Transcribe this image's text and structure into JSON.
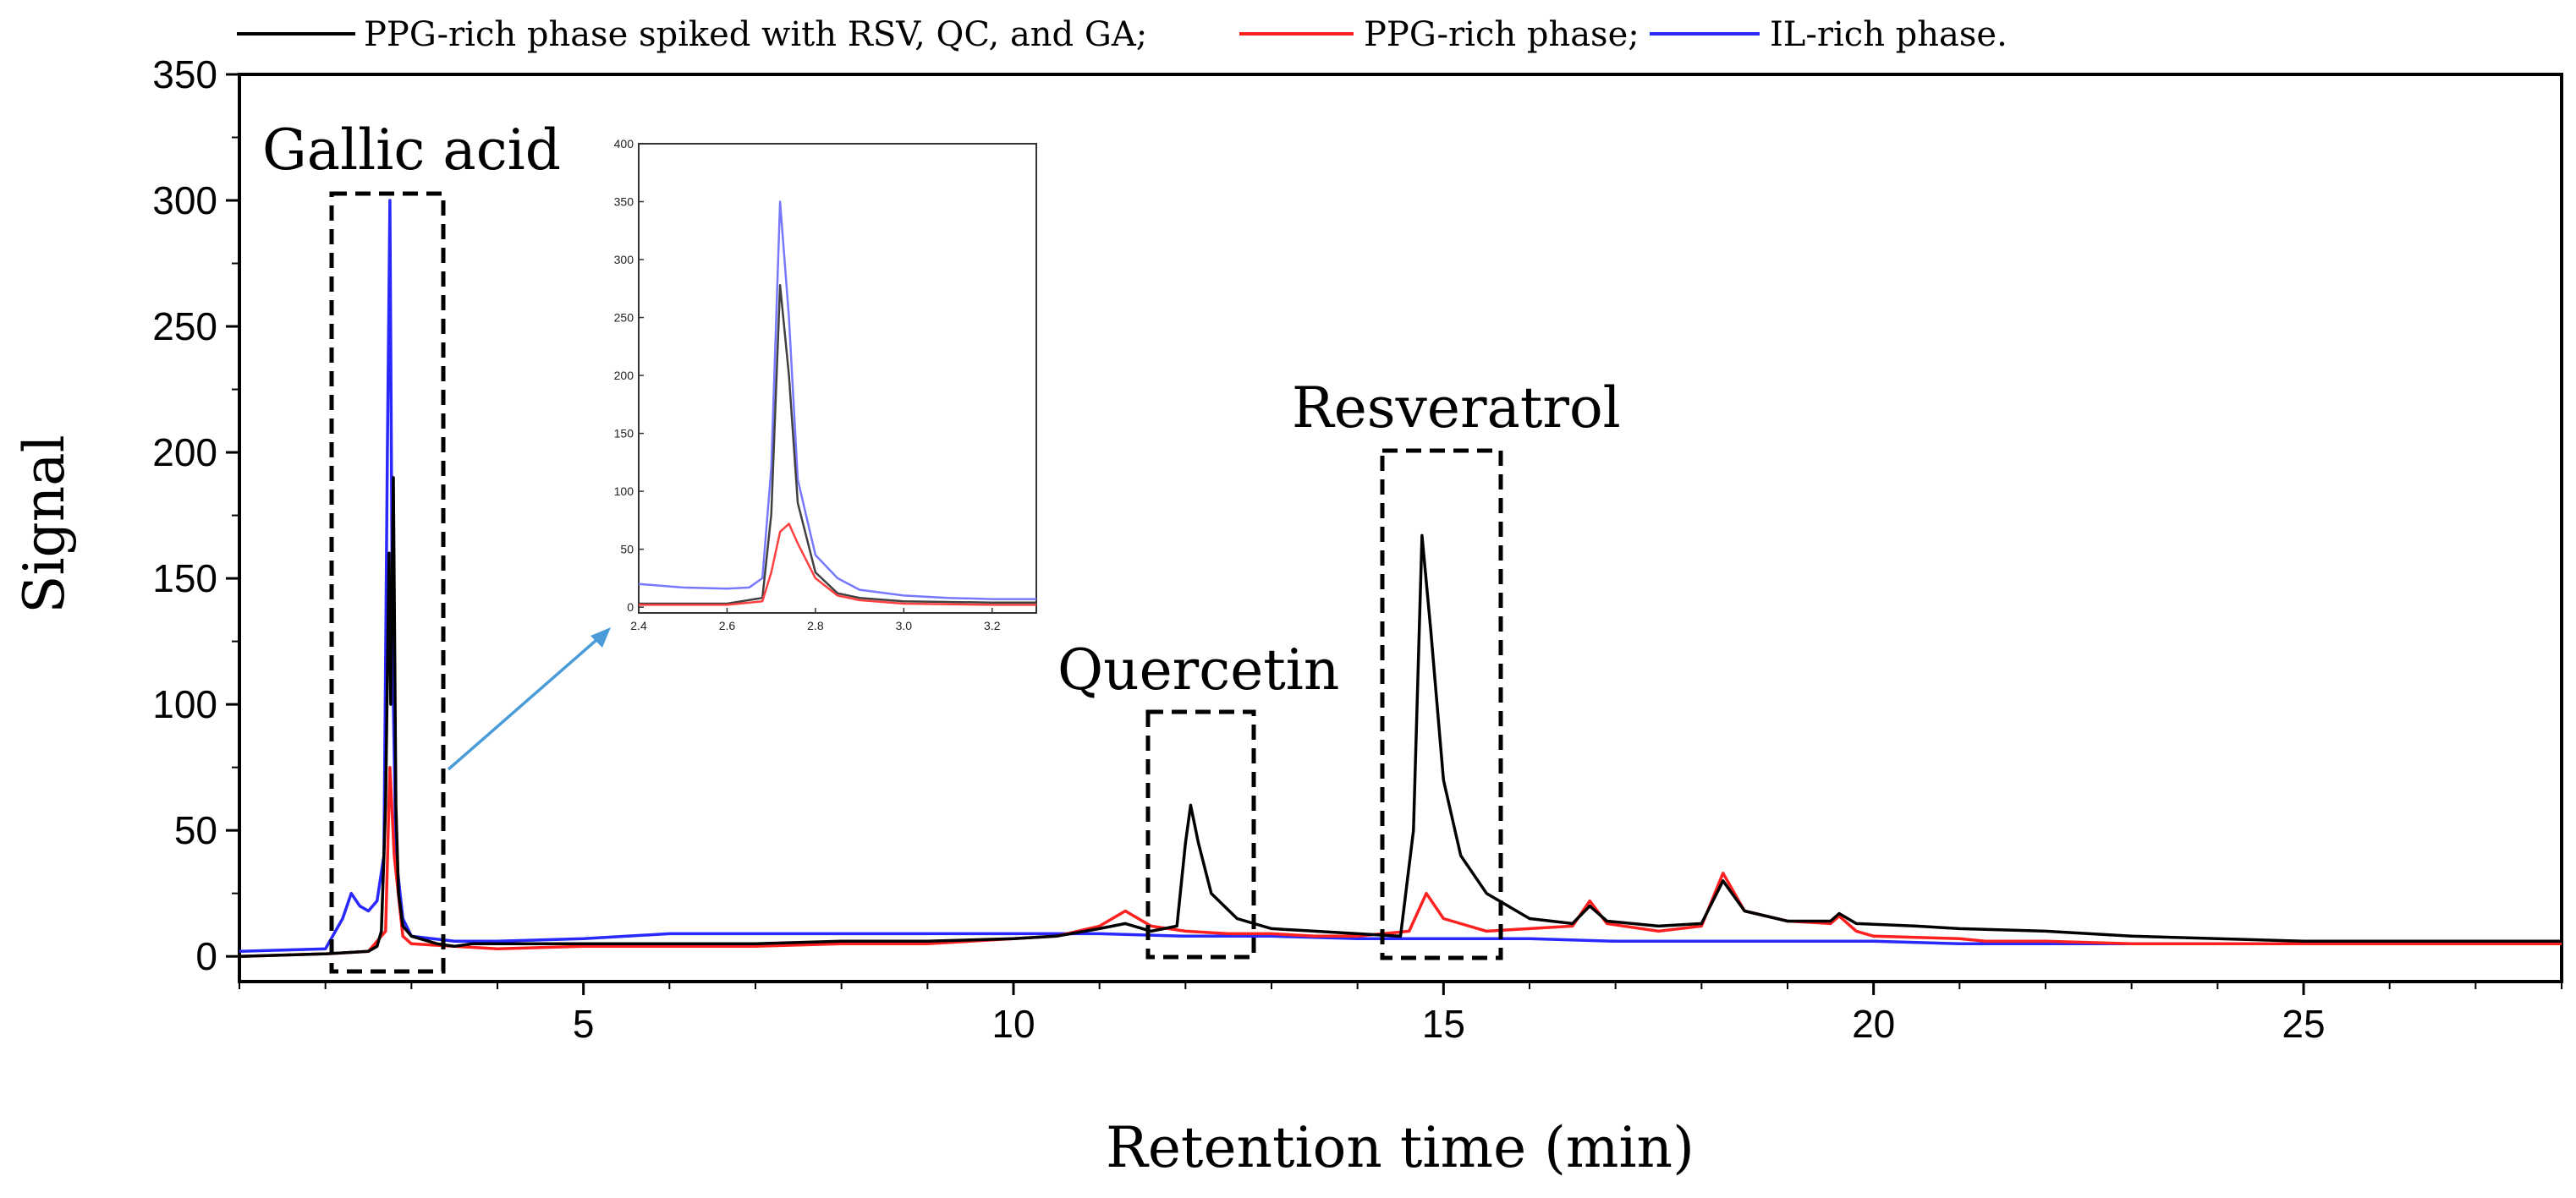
{
  "chart_data": {
    "type": "line",
    "title": "",
    "xlabel": "Retention time (min)",
    "ylabel": "Signal",
    "xlim": [
      1,
      28
    ],
    "ylim": [
      -10,
      350
    ],
    "x_ticks": [
      5,
      10,
      15,
      20,
      25
    ],
    "y_ticks": [
      0,
      50,
      100,
      150,
      200,
      250,
      300,
      350
    ],
    "legend_position": "top",
    "series": [
      {
        "name": "PPG-rich phase spiked with RSV, QC, and GA;",
        "color": "#000000",
        "points": [
          [
            1.0,
            0
          ],
          [
            2.0,
            1
          ],
          [
            2.5,
            2
          ],
          [
            2.6,
            4
          ],
          [
            2.65,
            10
          ],
          [
            2.7,
            60
          ],
          [
            2.74,
            160
          ],
          [
            2.76,
            100
          ],
          [
            2.79,
            190
          ],
          [
            2.82,
            60
          ],
          [
            2.85,
            25
          ],
          [
            2.9,
            12
          ],
          [
            3.0,
            8
          ],
          [
            3.3,
            5
          ],
          [
            3.5,
            4
          ],
          [
            3.7,
            5
          ],
          [
            4.0,
            5
          ],
          [
            5.0,
            5
          ],
          [
            6.0,
            5
          ],
          [
            7.0,
            5
          ],
          [
            8.0,
            6
          ],
          [
            9.0,
            6
          ],
          [
            10.0,
            7
          ],
          [
            10.5,
            8
          ],
          [
            11.0,
            11
          ],
          [
            11.3,
            13
          ],
          [
            11.6,
            10
          ],
          [
            11.9,
            12
          ],
          [
            12.0,
            45
          ],
          [
            12.06,
            60
          ],
          [
            12.15,
            45
          ],
          [
            12.3,
            25
          ],
          [
            12.6,
            15
          ],
          [
            13.0,
            11
          ],
          [
            13.5,
            10
          ],
          [
            14.0,
            9
          ],
          [
            14.5,
            8
          ],
          [
            14.65,
            50
          ],
          [
            14.75,
            167
          ],
          [
            14.85,
            130
          ],
          [
            15.0,
            70
          ],
          [
            15.2,
            40
          ],
          [
            15.5,
            25
          ],
          [
            16.0,
            15
          ],
          [
            16.5,
            13
          ],
          [
            16.7,
            20
          ],
          [
            16.9,
            14
          ],
          [
            17.5,
            12
          ],
          [
            18.0,
            13
          ],
          [
            18.25,
            30
          ],
          [
            18.5,
            18
          ],
          [
            19.0,
            14
          ],
          [
            19.5,
            14
          ],
          [
            19.6,
            17
          ],
          [
            19.8,
            13
          ],
          [
            20.5,
            12
          ],
          [
            21.0,
            11
          ],
          [
            22.0,
            10
          ],
          [
            23.0,
            8
          ],
          [
            24.0,
            7
          ],
          [
            25.0,
            6
          ],
          [
            26.0,
            6
          ],
          [
            27.0,
            6
          ],
          [
            28.0,
            6
          ]
        ]
      },
      {
        "name": "PPG-rich phase;",
        "color": "#ff2020",
        "points": [
          [
            1.0,
            0
          ],
          [
            2.0,
            1
          ],
          [
            2.5,
            2
          ],
          [
            2.7,
            10
          ],
          [
            2.75,
            75
          ],
          [
            2.8,
            40
          ],
          [
            2.9,
            8
          ],
          [
            3.0,
            5
          ],
          [
            3.5,
            4
          ],
          [
            4.0,
            3
          ],
          [
            5.0,
            4
          ],
          [
            6.0,
            4
          ],
          [
            7.0,
            4
          ],
          [
            8.0,
            5
          ],
          [
            9.0,
            5
          ],
          [
            10.0,
            7
          ],
          [
            10.5,
            8
          ],
          [
            11.0,
            12
          ],
          [
            11.3,
            18
          ],
          [
            11.6,
            12
          ],
          [
            12.0,
            10
          ],
          [
            12.5,
            9
          ],
          [
            13.0,
            9
          ],
          [
            13.5,
            8
          ],
          [
            14.0,
            8
          ],
          [
            14.6,
            10
          ],
          [
            14.8,
            25
          ],
          [
            15.0,
            15
          ],
          [
            15.5,
            10
          ],
          [
            16.0,
            11
          ],
          [
            16.5,
            12
          ],
          [
            16.7,
            22
          ],
          [
            16.9,
            13
          ],
          [
            17.5,
            10
          ],
          [
            18.0,
            12
          ],
          [
            18.25,
            33
          ],
          [
            18.5,
            18
          ],
          [
            19.0,
            14
          ],
          [
            19.5,
            13
          ],
          [
            19.6,
            16
          ],
          [
            19.8,
            10
          ],
          [
            20.0,
            8
          ],
          [
            21.0,
            7
          ],
          [
            21.3,
            6
          ],
          [
            22.0,
            6
          ],
          [
            23.0,
            5
          ],
          [
            25.0,
            5
          ],
          [
            28.0,
            5
          ]
        ]
      },
      {
        "name": "IL-rich phase.",
        "color": "#2828ff",
        "points": [
          [
            1.0,
            2
          ],
          [
            2.0,
            3
          ],
          [
            2.2,
            15
          ],
          [
            2.3,
            25
          ],
          [
            2.4,
            20
          ],
          [
            2.5,
            18
          ],
          [
            2.6,
            22
          ],
          [
            2.68,
            40
          ],
          [
            2.72,
            200
          ],
          [
            2.75,
            300
          ],
          [
            2.78,
            120
          ],
          [
            2.82,
            40
          ],
          [
            2.9,
            15
          ],
          [
            3.0,
            8
          ],
          [
            3.5,
            6
          ],
          [
            4.0,
            6
          ],
          [
            5.0,
            7
          ],
          [
            6.0,
            9
          ],
          [
            7.0,
            9
          ],
          [
            8.0,
            9
          ],
          [
            9.0,
            9
          ],
          [
            10.0,
            9
          ],
          [
            11.0,
            9
          ],
          [
            12.0,
            8
          ],
          [
            13.0,
            8
          ],
          [
            14.0,
            7
          ],
          [
            15.0,
            7
          ],
          [
            16.0,
            7
          ],
          [
            17.0,
            6
          ],
          [
            18.0,
            6
          ],
          [
            19.0,
            6
          ],
          [
            20.0,
            6
          ],
          [
            21.0,
            5
          ],
          [
            22.0,
            5
          ],
          [
            23.0,
            5
          ],
          [
            24.0,
            5
          ],
          [
            25.0,
            5
          ],
          [
            26.0,
            5
          ],
          [
            27.0,
            5
          ],
          [
            28.0,
            5
          ]
        ]
      }
    ],
    "annotations": [
      "Gallic acid",
      "Quercetin",
      "Resveratrol"
    ],
    "inset": {
      "xlim": [
        2.4,
        3.3
      ],
      "ylim": [
        -5,
        400
      ],
      "x_ticks": [
        "2.4",
        "2.6",
        "2.8",
        "3.0",
        "3.2"
      ],
      "y_ticks": [
        "0",
        "50",
        "100",
        "150",
        "200",
        "250",
        "300",
        "350",
        "400"
      ],
      "series": [
        {
          "color": "#7878ff",
          "points": [
            [
              2.4,
              20
            ],
            [
              2.5,
              17
            ],
            [
              2.6,
              16
            ],
            [
              2.65,
              17
            ],
            [
              2.68,
              25
            ],
            [
              2.7,
              120
            ],
            [
              2.72,
              350
            ],
            [
              2.74,
              250
            ],
            [
              2.76,
              110
            ],
            [
              2.8,
              45
            ],
            [
              2.85,
              25
            ],
            [
              2.9,
              15
            ],
            [
              3.0,
              10
            ],
            [
              3.1,
              8
            ],
            [
              3.2,
              7
            ],
            [
              3.3,
              7
            ]
          ]
        },
        {
          "color": "#404040",
          "points": [
            [
              2.4,
              3
            ],
            [
              2.5,
              3
            ],
            [
              2.6,
              3
            ],
            [
              2.68,
              8
            ],
            [
              2.7,
              80
            ],
            [
              2.72,
              278
            ],
            [
              2.74,
              200
            ],
            [
              2.76,
              90
            ],
            [
              2.8,
              30
            ],
            [
              2.85,
              12
            ],
            [
              2.9,
              8
            ],
            [
              3.0,
              5
            ],
            [
              3.2,
              4
            ],
            [
              3.3,
              4
            ]
          ]
        },
        {
          "color": "#ff4040",
          "points": [
            [
              2.4,
              2
            ],
            [
              2.5,
              2
            ],
            [
              2.6,
              2
            ],
            [
              2.68,
              5
            ],
            [
              2.7,
              30
            ],
            [
              2.72,
              65
            ],
            [
              2.74,
              72
            ],
            [
              2.76,
              55
            ],
            [
              2.8,
              25
            ],
            [
              2.85,
              10
            ],
            [
              2.9,
              6
            ],
            [
              3.0,
              3
            ],
            [
              3.2,
              2
            ],
            [
              3.3,
              2
            ]
          ]
        }
      ]
    }
  }
}
